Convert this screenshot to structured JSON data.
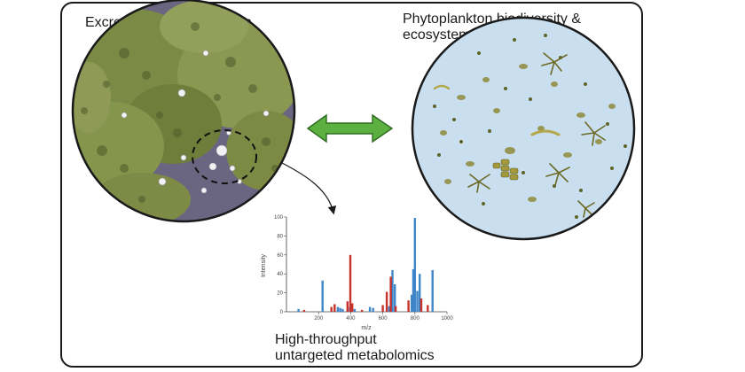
{
  "panels": {
    "left_title": "Excreted algal metabolites",
    "right_title_line1": "Phytoplankton biodiversity &",
    "right_title_line2": "ecosystem functioning",
    "bottom_title_line1": "High-throughput",
    "bottom_title_line2": "untargeted metabolomics"
  },
  "colors": {
    "frame": "#1a1a1a",
    "arrow_fill": "#5cb040",
    "arrow_stroke": "#2f6b22",
    "blue_peaks": "#3f86c8",
    "red_peaks": "#c8322c"
  },
  "chart_data": {
    "type": "bar",
    "xlabel": "m/z",
    "ylabel": "Intensity",
    "xlim": [
      0,
      1000
    ],
    "ylim": [
      0,
      100
    ],
    "xticks": [
      "200",
      "400",
      "600",
      "800",
      "1000"
    ],
    "yticks": [
      "0",
      "20",
      "40",
      "60",
      "80",
      "100"
    ],
    "series": [
      {
        "color": "blue",
        "points": [
          [
            75,
            3
          ],
          [
            225,
            33
          ],
          [
            320,
            5
          ],
          [
            335,
            4
          ],
          [
            350,
            3
          ],
          [
            395,
            5
          ],
          [
            425,
            3
          ],
          [
            520,
            5
          ],
          [
            540,
            4
          ],
          [
            640,
            6
          ],
          [
            660,
            44
          ],
          [
            675,
            29
          ],
          [
            780,
            18
          ],
          [
            790,
            45
          ],
          [
            800,
            99
          ],
          [
            815,
            22
          ],
          [
            830,
            40
          ],
          [
            910,
            44
          ]
        ]
      },
      {
        "color": "red",
        "points": [
          [
            110,
            2
          ],
          [
            280,
            5
          ],
          [
            300,
            8
          ],
          [
            380,
            11
          ],
          [
            398,
            60
          ],
          [
            410,
            9
          ],
          [
            470,
            2
          ],
          [
            600,
            7
          ],
          [
            625,
            21
          ],
          [
            650,
            37
          ],
          [
            680,
            6
          ],
          [
            760,
            12
          ],
          [
            840,
            14
          ],
          [
            880,
            7
          ]
        ]
      }
    ]
  }
}
